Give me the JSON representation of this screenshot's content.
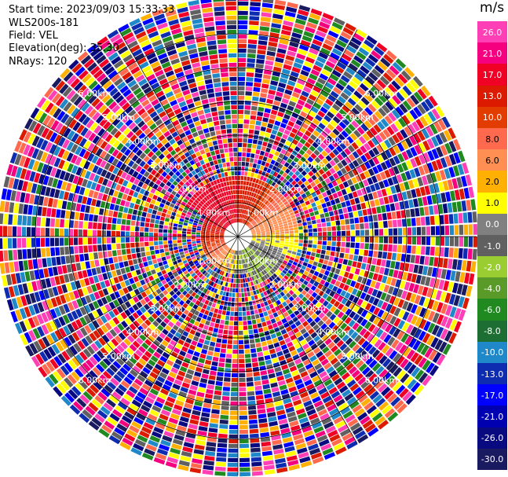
{
  "header": {
    "start_time": "Start time: 2023/09/03 15:33:33",
    "station": "WLS200s-181",
    "field": "Field: VEL",
    "elevation": "Elevation(deg): 35.30",
    "nrays": "NRays: 120"
  },
  "colorbar": {
    "unit": "m/s",
    "ticks": [
      "26.0",
      "21.0",
      "17.0",
      "13.0",
      "10.0",
      "8.0",
      "6.0",
      "2.0",
      "1.0",
      "0.0",
      "-1.0",
      "-2.0",
      "-4.0",
      "-6.0",
      "-8.0",
      "-10.0",
      "-13.0",
      "-17.0",
      "-21.0",
      "-26.0",
      "-30.0"
    ],
    "colors": [
      "#ff3fb5",
      "#f5007f",
      "#ef0024",
      "#dc1a00",
      "#e33c00",
      "#ff6a4e",
      "#ff8f52",
      "#ffb000",
      "#ffff00",
      "#808080",
      "#606060",
      "#9acd32",
      "#5a9a28",
      "#208a20",
      "#1d6e32",
      "#1e88c8",
      "#0d2cb0",
      "#0000ff",
      "#0000b0",
      "#0a0a80",
      "#1a1a60"
    ]
  },
  "chart_data": {
    "type": "heatmap",
    "subtype": "radar-ppi",
    "field": "VEL",
    "units": "m/s",
    "nrays": 120,
    "elevation_deg": 35.3,
    "range_rings_km": [
      1,
      2,
      3,
      4,
      5,
      6
    ],
    "range_ring_labels": [
      "1.00km",
      "2.00km",
      "3.00km",
      "4.00km",
      "5.00km",
      "6.00km"
    ],
    "color_levels": [
      26.0,
      21.0,
      17.0,
      13.0,
      10.0,
      8.0,
      6.0,
      2.0,
      1.0,
      0.0,
      -1.0,
      -2.0,
      -4.0,
      -6.0,
      -8.0,
      -10.0,
      -13.0,
      -17.0,
      -21.0,
      -26.0,
      -30.0
    ],
    "valid_data_extent_km": 1.8,
    "pattern": "coherent near-range field: positive (toward red/orange) to the north-east, yellow near east, negative (green/blue) to the south-east; beyond ~2 km values are noisy"
  }
}
